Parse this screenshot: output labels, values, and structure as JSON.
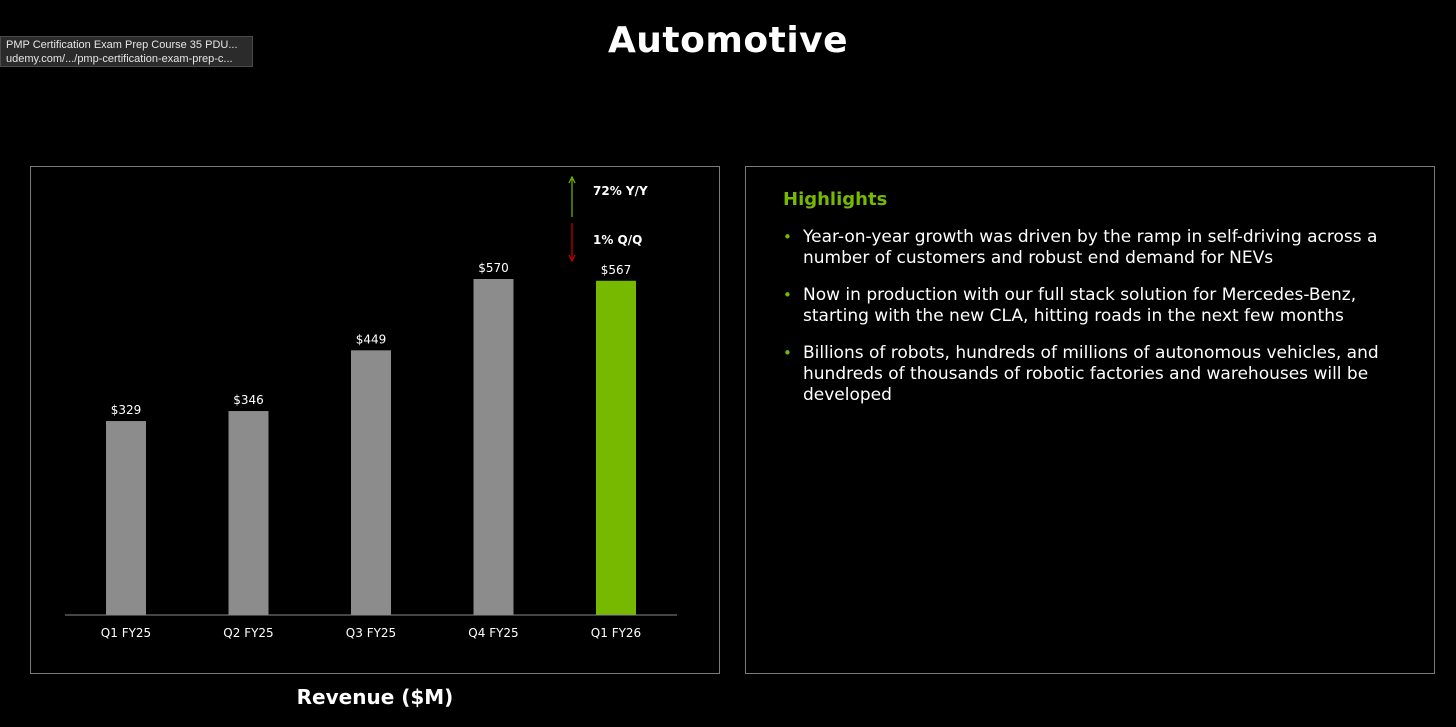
{
  "tooltip": {
    "title": "PMP Certification Exam Prep Course 35 PDU...",
    "url": "udemy.com/.../pmp-certification-exam-prep-c..."
  },
  "page": {
    "title": "Automotive"
  },
  "colors": {
    "background": "#000000",
    "bar_default": "#8c8c8c",
    "bar_highlight": "#76b900",
    "up_arrow": "#76b900",
    "down_arrow": "#cc0000",
    "panel_border": "#7a7a7a"
  },
  "chart_data": {
    "type": "bar",
    "title": "Revenue ($M)",
    "categories": [
      "Q1 FY25",
      "Q2 FY25",
      "Q3 FY25",
      "Q4 FY25",
      "Q1 FY26"
    ],
    "values": [
      329,
      346,
      449,
      570,
      567
    ],
    "data_labels": [
      "$329",
      "$346",
      "$449",
      "$570",
      "$567"
    ],
    "highlighted_category": "Q1 FY26",
    "ylim": [
      0,
      760
    ],
    "grid": false,
    "annotations": [
      {
        "text": "72% Y/Y",
        "direction": "up",
        "color": "#76b900"
      },
      {
        "text": "1% Q/Q",
        "direction": "down",
        "color": "#cc0000"
      }
    ]
  },
  "highlights": {
    "heading": "Highlights",
    "items": [
      "Year-on-year growth was driven by the ramp in self-driving across a number of customers and robust end demand for NEVs",
      "Now in production with our full stack solution for Mercedes-Benz, starting with the new CLA, hitting roads in the next few months",
      "Billions of robots, hundreds of millions of autonomous vehicles, and hundreds of thousands of robotic factories and warehouses will be developed"
    ]
  }
}
